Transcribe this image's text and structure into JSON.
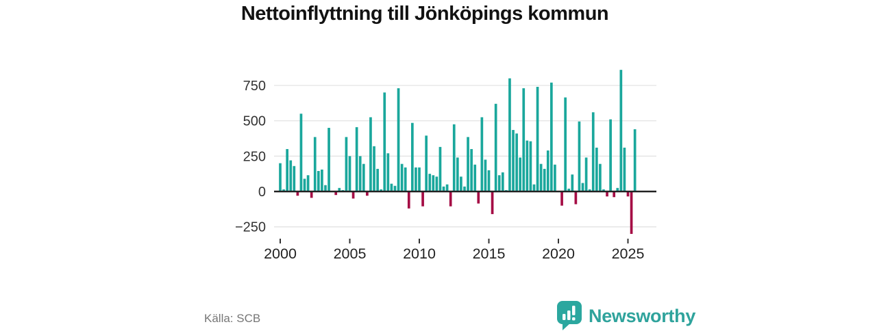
{
  "title": "Nettoinflyttning till Jönköpings kommun",
  "footer": {
    "source": "Källa: SCB",
    "brand": "Newsworthy"
  },
  "colors": {
    "positive_bar": "#1aa79c",
    "negative_bar": "#a50d45",
    "gridline": "#e3e3e3",
    "axis_line": "#222222",
    "tick_label": "#333333",
    "brand_teal": "#2fa39c"
  },
  "chart_data": {
    "type": "bar",
    "title": "Nettoinflyttning till Jönköpings kommun",
    "xlabel": "",
    "ylabel": "",
    "frequency": "quarterly",
    "start_year": 2000,
    "start_quarter": 1,
    "end_year": 2025,
    "end_quarter": 3,
    "grid": true,
    "ylim": [
      -330,
      900
    ],
    "y_ticks": [
      750,
      500,
      250,
      0,
      -250
    ],
    "x_tick_years": [
      2000,
      2005,
      2010,
      2015,
      2020,
      2025
    ],
    "positive_color": "#1aa79c",
    "negative_color": "#a50d45",
    "values": [
      200,
      15,
      300,
      220,
      180,
      -30,
      550,
      90,
      115,
      -45,
      385,
      145,
      155,
      45,
      450,
      0,
      -25,
      25,
      10,
      385,
      250,
      -50,
      455,
      250,
      195,
      -30,
      525,
      320,
      160,
      15,
      700,
      270,
      55,
      40,
      730,
      195,
      170,
      -120,
      485,
      170,
      170,
      -105,
      395,
      125,
      115,
      105,
      315,
      35,
      50,
      -105,
      475,
      240,
      105,
      35,
      385,
      300,
      190,
      -85,
      525,
      225,
      150,
      -160,
      620,
      115,
      135,
      10,
      800,
      435,
      410,
      240,
      730,
      360,
      355,
      50,
      740,
      195,
      160,
      290,
      770,
      190,
      5,
      -100,
      665,
      20,
      120,
      -90,
      495,
      60,
      240,
      15,
      560,
      310,
      195,
      15,
      -35,
      510,
      -40,
      25,
      860,
      310,
      -35,
      -300,
      440
    ]
  }
}
